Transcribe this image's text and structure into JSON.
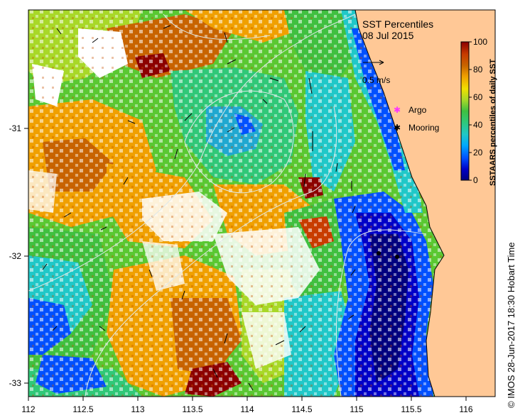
{
  "title": "SST Percentiles",
  "date": "08 Jul 2015",
  "velocity_scale_label": "0.5 m/s",
  "legend": {
    "argo_label": "Argo",
    "mooring_label": "Mooring",
    "argo_color": "#ff33ff",
    "mooring_color": "#000000"
  },
  "colorbar": {
    "label": "SSTAARS percentiles of daily SST",
    "ticks": [
      "100",
      "80",
      "60",
      "40",
      "20",
      "0"
    ],
    "colors": [
      "#00007f",
      "#0000c8",
      "#0050ff",
      "#00a8ff",
      "#20c8c8",
      "#30c878",
      "#40c040",
      "#a8d828",
      "#f0e000",
      "#f0a000",
      "#c86400",
      "#c83c00",
      "#8c0000"
    ]
  },
  "axes": {
    "x_ticks": [
      "112",
      "112.5",
      "113",
      "113.5",
      "114",
      "114.5",
      "115",
      "115.5",
      "116"
    ],
    "y_ticks": [
      "-31",
      "-32",
      "-33"
    ]
  },
  "credit": "© IMOS 28-Jun-2017 18:30 Hobart Time",
  "colors": {
    "land": "#ffc896",
    "no_data": "#ffffff",
    "contour": "#dfe8e8"
  }
}
